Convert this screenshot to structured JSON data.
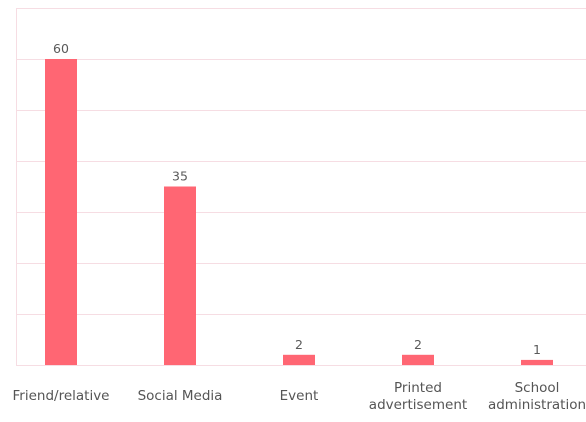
{
  "chart_data": {
    "type": "bar",
    "title": "",
    "xlabel": "",
    "ylabel": "",
    "categories": [
      [
        "Friend/relative"
      ],
      [
        "Social Media"
      ],
      [
        "Event"
      ],
      [
        "Printed",
        "advertisement"
      ],
      [
        "School",
        "administration"
      ]
    ],
    "values": [
      60,
      35,
      2,
      2,
      1
    ],
    "ylim": [
      0,
      70
    ],
    "grid": true,
    "legend": "none",
    "data_labels": true,
    "colors": {
      "bar": "#ff6673",
      "grid": "#f6dde3",
      "text": "#555555"
    }
  }
}
